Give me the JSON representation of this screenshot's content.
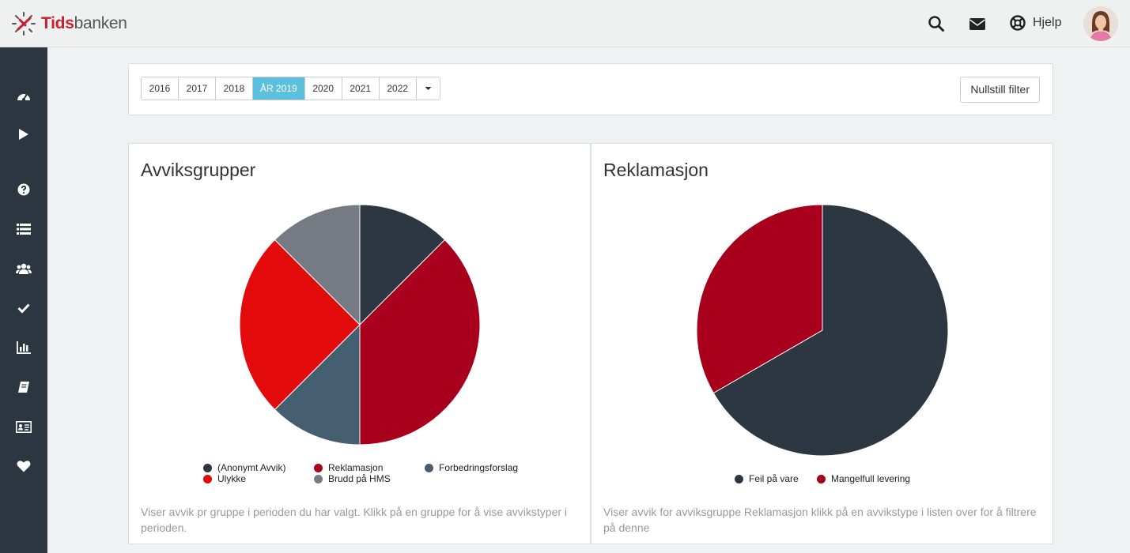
{
  "app": {
    "logo_bold": "Tids",
    "logo_light": "banken"
  },
  "header": {
    "help_label": "Hjelp"
  },
  "icons": {
    "top": [
      "search-icon",
      "envelope-icon",
      "lifebuoy-icon"
    ],
    "sidebar": [
      "dashboard-icon",
      "play-icon",
      "question-icon",
      "list-icon",
      "users-icon",
      "check-icon",
      "bar-chart-icon",
      "book-icon",
      "id-card-icon",
      "heart-icon"
    ]
  },
  "filter": {
    "years": [
      "2016",
      "2017",
      "2018",
      "ÅR 2019",
      "2020",
      "2021",
      "2022"
    ],
    "active_year": "ÅR 2019",
    "reset_label": "Nullstill filter"
  },
  "panels": [
    {
      "title": "Avviksgrupper",
      "description": "Viser avvik pr gruppe i perioden du har valgt. Klikk på en gruppe for å vise avvikstyper i perioden."
    },
    {
      "title": "Reklamasjon",
      "description": "Viser avvik for avviksgruppe Reklamasjon klikk på en avvikstype i listen over for å filtrere på denne"
    }
  ],
  "colors": {
    "sidebar_bg": "#2b3640",
    "active_year": "#5bc0de",
    "brand_red": "#cc1f2d"
  },
  "chart_data": [
    {
      "type": "pie",
      "title": "Avviksgrupper",
      "labels": [
        "(Anonymt Avvik)",
        "Reklamasjon",
        "Forbedringsforslag",
        "Ulykke",
        "Brudd på HMS"
      ],
      "values": [
        1,
        3,
        1,
        2,
        1
      ],
      "colors": [
        "#2d3742",
        "#a8001c",
        "#465f70",
        "#e20a0a",
        "#767a82"
      ],
      "legend": "bottom"
    },
    {
      "type": "pie",
      "title": "Reklamasjon",
      "labels": [
        "Feil på vare",
        "Mangelfull levering"
      ],
      "values": [
        2,
        1
      ],
      "colors": [
        "#2d3742",
        "#a8001c"
      ],
      "legend": "bottom"
    }
  ]
}
